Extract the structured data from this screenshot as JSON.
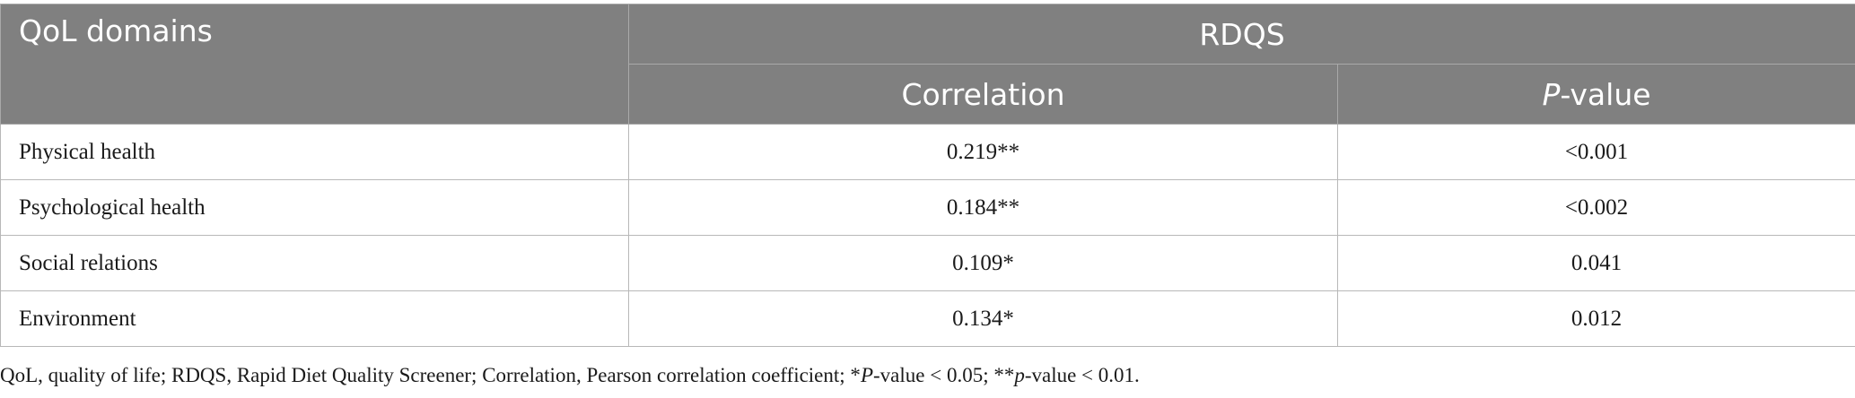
{
  "table": {
    "headers": {
      "domain": "QoL domains",
      "group": "RDQS",
      "correlation": "Correlation",
      "pvalue_italic": "P",
      "pvalue_rest": "-value"
    },
    "rows": [
      {
        "domain": "Physical health",
        "correlation": "0.219**",
        "pvalue": "<0.001"
      },
      {
        "domain": "Psychological health",
        "correlation": "0.184**",
        "pvalue": "<0.002"
      },
      {
        "domain": "Social relations",
        "correlation": "0.109*",
        "pvalue": "0.041"
      },
      {
        "domain": "Environment",
        "correlation": "0.134*",
        "pvalue": "0.012"
      }
    ]
  },
  "footnote": {
    "part1": "QoL, quality of life; RDQS, Rapid Diet Quality Screener; Correlation, Pearson correlation coefficient; *",
    "italic1": "P",
    "part2": "-value < 0.05; **",
    "italic2": "p",
    "part3": "-value < 0.01."
  }
}
